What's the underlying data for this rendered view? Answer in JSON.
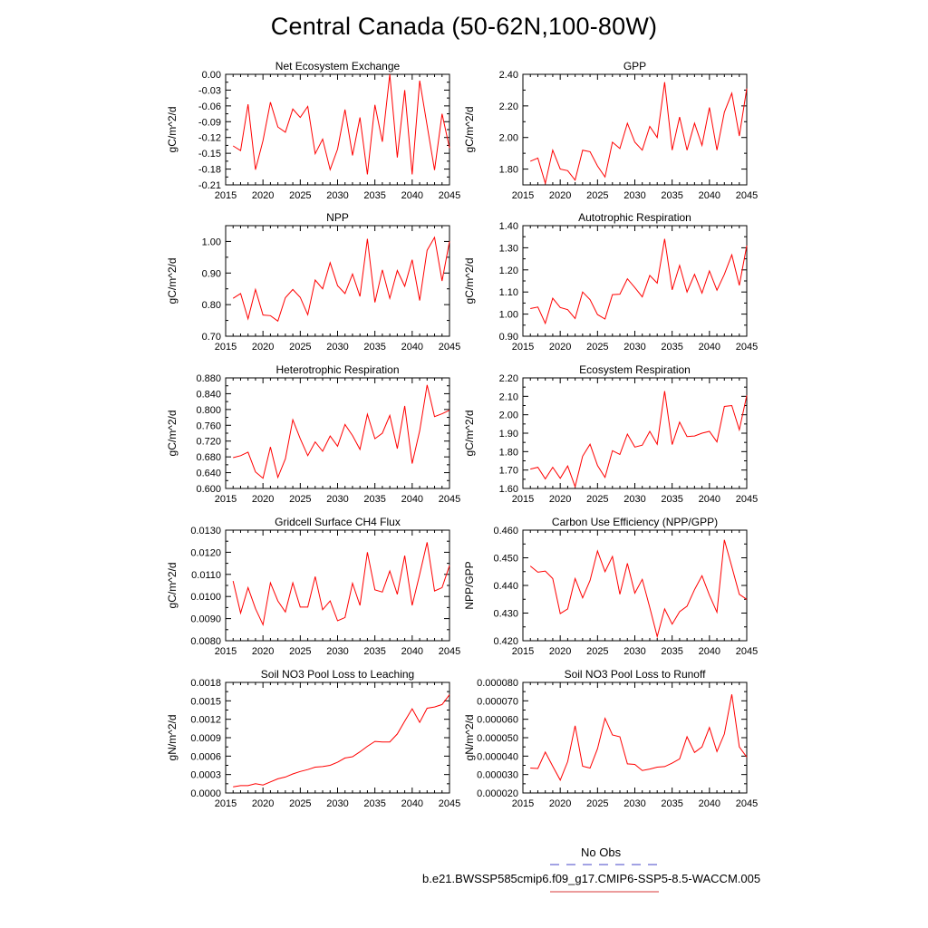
{
  "page": {
    "title": "Central Canada (50-62N,100-80W)"
  },
  "legend": {
    "obs_label": "No Obs",
    "obs_color": "#6a6ad4",
    "case_label": "b.e21.BWSSP585cmip6.f09_g17.CMIP6-SSP5-8.5-WACCM.005",
    "case_color": "#e06060"
  },
  "colors": {
    "series": "#ff0000",
    "axis": "#000000"
  },
  "chart_data": [
    {
      "type": "line",
      "title": "Net Ecosystem Exchange",
      "ylabel": "gC/m^2/d",
      "xlim": [
        2015,
        2045
      ],
      "ylim": [
        -0.21,
        0.0
      ],
      "xticks": [
        "2015",
        "2020",
        "2025",
        "2030",
        "2035",
        "2040",
        "2045"
      ],
      "yticks": [
        "-0.21",
        "-0.18",
        "-0.15",
        "-0.12",
        "-0.09",
        "-0.06",
        "-0.03",
        "0.00"
      ],
      "x": [
        2016,
        2017,
        2018,
        2019,
        2020,
        2021,
        2022,
        2023,
        2024,
        2025,
        2026,
        2027,
        2028,
        2029,
        2030,
        2031,
        2032,
        2033,
        2034,
        2035,
        2036,
        2037,
        2038,
        2039,
        2040,
        2041,
        2042,
        2043,
        2044,
        2045
      ],
      "values": [
        -0.136,
        -0.145,
        -0.057,
        -0.181,
        -0.126,
        -0.053,
        -0.1,
        -0.11,
        -0.066,
        -0.082,
        -0.061,
        -0.151,
        -0.123,
        -0.181,
        -0.142,
        -0.067,
        -0.154,
        -0.082,
        -0.19,
        -0.058,
        -0.128,
        0.0,
        -0.158,
        -0.03,
        -0.19,
        -0.012,
        -0.097,
        -0.182,
        -0.075,
        -0.14
      ]
    },
    {
      "type": "line",
      "title": "GPP",
      "ylabel": "gC/m^2/d",
      "xlim": [
        2015,
        2045
      ],
      "ylim": [
        1.7,
        2.4
      ],
      "xticks": [
        "2015",
        "2020",
        "2025",
        "2030",
        "2035",
        "2040",
        "2045"
      ],
      "yticks": [
        "1.80",
        "2.00",
        "2.20",
        "2.40"
      ],
      "x": [
        2016,
        2017,
        2018,
        2019,
        2020,
        2021,
        2022,
        2023,
        2024,
        2025,
        2026,
        2027,
        2028,
        2029,
        2030,
        2031,
        2032,
        2033,
        2034,
        2035,
        2036,
        2037,
        2038,
        2039,
        2040,
        2041,
        2042,
        2043,
        2044,
        2045
      ],
      "values": [
        1.85,
        1.87,
        1.71,
        1.92,
        1.8,
        1.79,
        1.73,
        1.92,
        1.91,
        1.82,
        1.75,
        1.97,
        1.93,
        2.09,
        1.97,
        1.92,
        2.07,
        2.0,
        2.35,
        1.92,
        2.13,
        1.92,
        2.09,
        1.95,
        2.19,
        1.92,
        2.16,
        2.28,
        2.01,
        2.31
      ]
    },
    {
      "type": "line",
      "title": "NPP",
      "ylabel": "gC/m^2/d",
      "xlim": [
        2015,
        2045
      ],
      "ylim": [
        0.7,
        1.05
      ],
      "xticks": [
        "2015",
        "2020",
        "2025",
        "2030",
        "2035",
        "2040",
        "2045"
      ],
      "yticks": [
        "0.70",
        "0.80",
        "0.90",
        "1.00"
      ],
      "x": [
        2016,
        2017,
        2018,
        2019,
        2020,
        2021,
        2022,
        2023,
        2024,
        2025,
        2026,
        2027,
        2028,
        2029,
        2030,
        2031,
        2032,
        2033,
        2034,
        2035,
        2036,
        2037,
        2038,
        2039,
        2040,
        2041,
        2042,
        2043,
        2044,
        2045
      ],
      "values": [
        0.82,
        0.835,
        0.755,
        0.848,
        0.767,
        0.765,
        0.748,
        0.822,
        0.848,
        0.823,
        0.768,
        0.878,
        0.85,
        0.933,
        0.86,
        0.835,
        0.897,
        0.826,
        1.008,
        0.807,
        0.91,
        0.82,
        0.908,
        0.858,
        0.942,
        0.813,
        0.972,
        1.013,
        0.875,
        1.0
      ]
    },
    {
      "type": "line",
      "title": "Autotrophic Respiration",
      "ylabel": "gC/m^2/d",
      "xlim": [
        2015,
        2045
      ],
      "ylim": [
        0.9,
        1.4
      ],
      "xticks": [
        "2015",
        "2020",
        "2025",
        "2030",
        "2035",
        "2040",
        "2045"
      ],
      "yticks": [
        "0.90",
        "1.00",
        "1.10",
        "1.20",
        "1.30",
        "1.40"
      ],
      "x": [
        2016,
        2017,
        2018,
        2019,
        2020,
        2021,
        2022,
        2023,
        2024,
        2025,
        2026,
        2027,
        2028,
        2029,
        2030,
        2031,
        2032,
        2033,
        2034,
        2035,
        2036,
        2037,
        2038,
        2039,
        2040,
        2041,
        2042,
        2043,
        2044,
        2045
      ],
      "values": [
        1.025,
        1.032,
        0.958,
        1.072,
        1.03,
        1.02,
        0.98,
        1.1,
        1.065,
        0.998,
        0.978,
        1.088,
        1.09,
        1.16,
        1.12,
        1.078,
        1.175,
        1.14,
        1.34,
        1.11,
        1.22,
        1.1,
        1.18,
        1.095,
        1.195,
        1.108,
        1.18,
        1.268,
        1.13,
        1.31
      ]
    },
    {
      "type": "line",
      "title": "Heterotrophic Respiration",
      "ylabel": "gC/m^2/d",
      "xlim": [
        2015,
        2045
      ],
      "ylim": [
        0.6,
        0.88
      ],
      "xticks": [
        "2015",
        "2020",
        "2025",
        "2030",
        "2035",
        "2040",
        "2045"
      ],
      "yticks": [
        "0.600",
        "0.640",
        "0.680",
        "0.720",
        "0.760",
        "0.800",
        "0.840",
        "0.880"
      ],
      "x": [
        2016,
        2017,
        2018,
        2019,
        2020,
        2021,
        2022,
        2023,
        2024,
        2025,
        2026,
        2027,
        2028,
        2029,
        2030,
        2031,
        2032,
        2033,
        2034,
        2035,
        2036,
        2037,
        2038,
        2039,
        2040,
        2041,
        2042,
        2043,
        2044,
        2045
      ],
      "values": [
        0.678,
        0.683,
        0.692,
        0.642,
        0.626,
        0.705,
        0.628,
        0.675,
        0.774,
        0.726,
        0.683,
        0.718,
        0.694,
        0.733,
        0.707,
        0.762,
        0.734,
        0.699,
        0.788,
        0.726,
        0.74,
        0.785,
        0.701,
        0.809,
        0.663,
        0.746,
        0.862,
        0.782,
        0.789,
        0.798
      ]
    },
    {
      "type": "line",
      "title": "Ecosystem Respiration",
      "ylabel": "gC/m^2/d",
      "xlim": [
        2015,
        2045
      ],
      "ylim": [
        1.6,
        2.2
      ],
      "xticks": [
        "2015",
        "2020",
        "2025",
        "2030",
        "2035",
        "2040",
        "2045"
      ],
      "yticks": [
        "1.60",
        "1.70",
        "1.80",
        "1.90",
        "2.00",
        "2.10",
        "2.20"
      ],
      "x": [
        2016,
        2017,
        2018,
        2019,
        2020,
        2021,
        2022,
        2023,
        2024,
        2025,
        2026,
        2027,
        2028,
        2029,
        2030,
        2031,
        2032,
        2033,
        2034,
        2035,
        2036,
        2037,
        2038,
        2039,
        2040,
        2041,
        2042,
        2043,
        2044,
        2045
      ],
      "values": [
        1.705,
        1.715,
        1.652,
        1.715,
        1.655,
        1.722,
        1.61,
        1.775,
        1.84,
        1.725,
        1.66,
        1.805,
        1.785,
        1.895,
        1.825,
        1.835,
        1.91,
        1.84,
        2.128,
        1.838,
        1.96,
        1.882,
        1.885,
        1.9,
        1.91,
        1.853,
        2.045,
        2.05,
        1.918,
        2.105
      ]
    },
    {
      "type": "line",
      "title": "Gridcell Surface CH4 Flux",
      "ylabel": "gC/m^2/d",
      "xlim": [
        2015,
        2045
      ],
      "ylim": [
        0.008,
        0.013
      ],
      "xticks": [
        "2015",
        "2020",
        "2025",
        "2030",
        "2035",
        "2040",
        "2045"
      ],
      "yticks": [
        "0.0080",
        "0.0090",
        "0.0100",
        "0.0110",
        "0.0120",
        "0.0130"
      ],
      "x": [
        2016,
        2017,
        2018,
        2019,
        2020,
        2021,
        2022,
        2023,
        2024,
        2025,
        2026,
        2027,
        2028,
        2029,
        2030,
        2031,
        2032,
        2033,
        2034,
        2035,
        2036,
        2037,
        2038,
        2039,
        2040,
        2041,
        2042,
        2043,
        2044,
        2045
      ],
      "values": [
        0.0107,
        0.00925,
        0.0104,
        0.00945,
        0.00872,
        0.01062,
        0.0098,
        0.0093,
        0.01062,
        0.00952,
        0.00952,
        0.0109,
        0.0094,
        0.0098,
        0.0089,
        0.00905,
        0.0106,
        0.0096,
        0.012,
        0.0103,
        0.0102,
        0.01115,
        0.0101,
        0.01185,
        0.0096,
        0.011,
        0.01245,
        0.01025,
        0.0104,
        0.0114
      ]
    },
    {
      "type": "line",
      "title": "Carbon Use Efficiency (NPP/GPP)",
      "ylabel": "NPP/GPP",
      "xlim": [
        2015,
        2045
      ],
      "ylim": [
        0.42,
        0.46
      ],
      "xticks": [
        "2015",
        "2020",
        "2025",
        "2030",
        "2035",
        "2040",
        "2045"
      ],
      "yticks": [
        "0.420",
        "0.430",
        "0.440",
        "0.450",
        "0.460"
      ],
      "x": [
        2016,
        2017,
        2018,
        2019,
        2020,
        2021,
        2022,
        2023,
        2024,
        2025,
        2026,
        2027,
        2028,
        2029,
        2030,
        2031,
        2032,
        2033,
        2034,
        2035,
        2036,
        2037,
        2038,
        2039,
        2040,
        2041,
        2042,
        2043,
        2044,
        2045
      ],
      "values": [
        0.447,
        0.4448,
        0.4452,
        0.4425,
        0.4298,
        0.4315,
        0.4425,
        0.4355,
        0.4418,
        0.4525,
        0.445,
        0.4505,
        0.4368,
        0.448,
        0.4372,
        0.4422,
        0.432,
        0.4215,
        0.4315,
        0.426,
        0.4305,
        0.4325,
        0.4385,
        0.4435,
        0.4365,
        0.4303,
        0.4565,
        0.4468,
        0.4368,
        0.435
      ]
    },
    {
      "type": "line",
      "title": "Soil NO3 Pool Loss to Leaching",
      "ylabel": "gN/m^2/d",
      "xlim": [
        2015,
        2045
      ],
      "ylim": [
        0.0,
        0.0018
      ],
      "xticks": [
        "2015",
        "2020",
        "2025",
        "2030",
        "2035",
        "2040",
        "2045"
      ],
      "yticks": [
        "0.0000",
        "0.0003",
        "0.0006",
        "0.0009",
        "0.0012",
        "0.0015",
        "0.0018"
      ],
      "x": [
        2016,
        2017,
        2018,
        2019,
        2020,
        2021,
        2022,
        2023,
        2024,
        2025,
        2026,
        2027,
        2028,
        2029,
        2030,
        2031,
        2032,
        2033,
        2034,
        2035,
        2036,
        2037,
        2038,
        2039,
        2040,
        2041,
        2042,
        2043,
        2044,
        2045
      ],
      "values": [
        0.0001,
        0.00012,
        0.00012,
        0.00015,
        0.00013,
        0.00018,
        0.00023,
        0.00026,
        0.00031,
        0.00035,
        0.00038,
        0.00042,
        0.00043,
        0.00045,
        0.0005,
        0.00057,
        0.00059,
        0.00067,
        0.00076,
        0.00084,
        0.00083,
        0.00083,
        0.00096,
        0.00117,
        0.00137,
        0.00115,
        0.00138,
        0.0014,
        0.00144,
        0.0016
      ]
    },
    {
      "type": "line",
      "title": "Soil NO3 Pool Loss to Runoff",
      "ylabel": "gN/m^2/d",
      "xlim": [
        2015,
        2045
      ],
      "ylim": [
        2e-05,
        8e-05
      ],
      "xticks": [
        "2015",
        "2020",
        "2025",
        "2030",
        "2035",
        "2040",
        "2045"
      ],
      "yticks": [
        "0.000020",
        "0.000030",
        "0.000040",
        "0.000050",
        "0.000060",
        "0.000070",
        "0.000080"
      ],
      "x": [
        2016,
        2017,
        2018,
        2019,
        2020,
        2021,
        2022,
        2023,
        2024,
        2025,
        2026,
        2027,
        2028,
        2029,
        2030,
        2031,
        2032,
        2033,
        2034,
        2035,
        2036,
        2037,
        2038,
        2039,
        2040,
        2041,
        2042,
        2043,
        2044,
        2045
      ],
      "values": [
        3.35e-05,
        3.33e-05,
        4.22e-05,
        3.45e-05,
        2.7e-05,
        3.7e-05,
        5.65e-05,
        3.45e-05,
        3.35e-05,
        4.4e-05,
        6.05e-05,
        5.15e-05,
        5.05e-05,
        3.58e-05,
        3.55e-05,
        3.22e-05,
        3.3e-05,
        3.4e-05,
        3.43e-05,
        3.62e-05,
        3.85e-05,
        5.05e-05,
        4.2e-05,
        4.5e-05,
        5.55e-05,
        4.25e-05,
        5.2e-05,
        7.35e-05,
        4.5e-05,
        3.95e-05
      ]
    }
  ]
}
